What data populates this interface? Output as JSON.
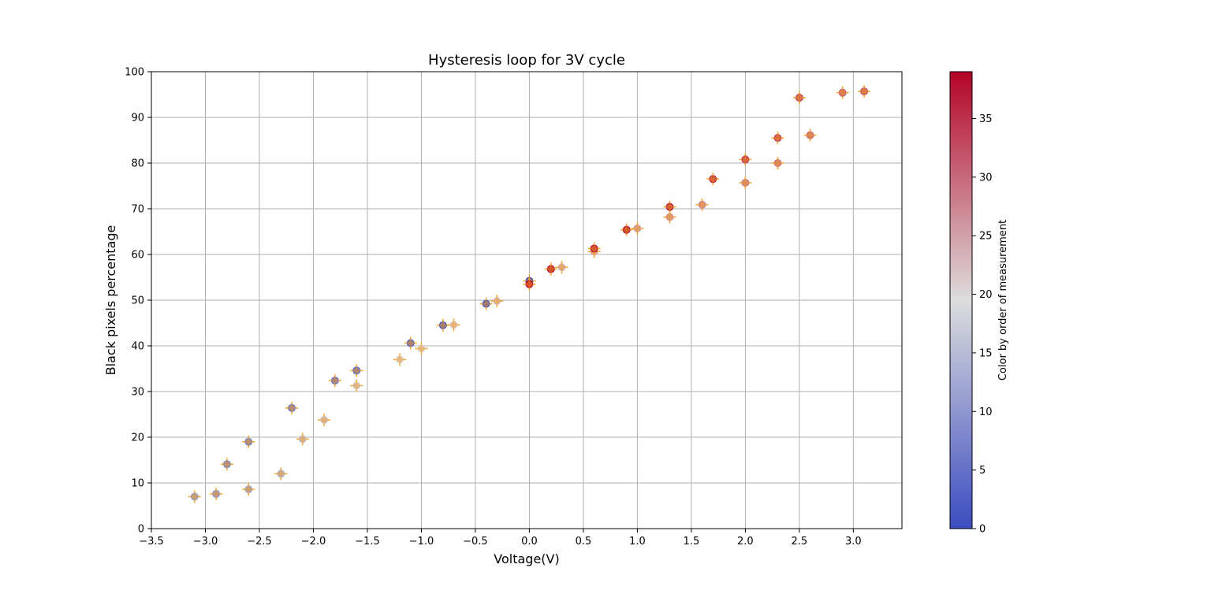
{
  "chart_data": {
    "type": "scatter",
    "title": "Hysteresis loop for 3V cycle",
    "xlabel": "Voltage(V)",
    "ylabel": "Black pixels percentage",
    "xlim": [
      -3.5,
      3.45
    ],
    "ylim": [
      0,
      100
    ],
    "xticks": [
      "−3.5",
      "−3.0",
      "−2.5",
      "−2.0",
      "−1.5",
      "−1.0",
      "−0.5",
      "0.0",
      "0.5",
      "1.0",
      "1.5",
      "2.0",
      "2.5",
      "3.0"
    ],
    "xtick_values": [
      -3.5,
      -3.0,
      -2.5,
      -2.0,
      -1.5,
      -1.0,
      -0.5,
      0.0,
      0.5,
      1.0,
      1.5,
      2.0,
      2.5,
      3.0
    ],
    "yticks": [
      "0",
      "10",
      "20",
      "30",
      "40",
      "50",
      "60",
      "70",
      "80",
      "90",
      "100"
    ],
    "ytick_values": [
      0,
      10,
      20,
      30,
      40,
      50,
      60,
      70,
      80,
      90,
      100
    ],
    "grid": true,
    "colorbar": {
      "label": "Color by order of measurement",
      "ticks": [
        "0",
        "5",
        "10",
        "15",
        "20",
        "25",
        "30",
        "35"
      ],
      "tick_values": [
        0,
        5,
        10,
        15,
        20,
        25,
        30,
        35
      ],
      "range": [
        0,
        39
      ],
      "colormap": "coolwarm",
      "colors": [
        "#3b4cc0",
        "#dddddd",
        "#b40426"
      ]
    },
    "errorbar_color": "#f5a623",
    "marker_color": "#f39c2a",
    "points": [
      {
        "x": 0.0,
        "y": 54.2,
        "order": 0
      },
      {
        "x": -0.4,
        "y": 49.2,
        "order": 1
      },
      {
        "x": -0.8,
        "y": 44.5,
        "order": 2
      },
      {
        "x": -1.1,
        "y": 40.6,
        "order": 3
      },
      {
        "x": -1.6,
        "y": 34.6,
        "order": 4
      },
      {
        "x": -1.8,
        "y": 32.4,
        "order": 5
      },
      {
        "x": -2.2,
        "y": 26.4,
        "order": 6
      },
      {
        "x": -2.6,
        "y": 19.0,
        "order": 7
      },
      {
        "x": -2.8,
        "y": 14.1,
        "order": 8
      },
      {
        "x": -2.9,
        "y": 7.6,
        "order": 10
      },
      {
        "x": -3.1,
        "y": 7.0,
        "order": 11
      },
      {
        "x": -2.6,
        "y": 8.6,
        "order": 12
      },
      {
        "x": -2.3,
        "y": 12.0,
        "order": 14
      },
      {
        "x": -2.1,
        "y": 19.6,
        "order": 16
      },
      {
        "x": -1.9,
        "y": 23.8,
        "order": 17
      },
      {
        "x": -1.6,
        "y": 31.3,
        "order": 18
      },
      {
        "x": -1.2,
        "y": 37.0,
        "order": 19
      },
      {
        "x": -1.0,
        "y": 39.4,
        "order": 20
      },
      {
        "x": -0.7,
        "y": 44.6,
        "order": 21
      },
      {
        "x": -0.3,
        "y": 49.8,
        "order": 22
      },
      {
        "x": 0.0,
        "y": 53.5,
        "order": 39
      },
      {
        "x": 0.3,
        "y": 57.2,
        "order": 23
      },
      {
        "x": 0.6,
        "y": 60.6,
        "order": 24
      },
      {
        "x": 1.0,
        "y": 65.7,
        "order": 25
      },
      {
        "x": 1.3,
        "y": 68.2,
        "order": 26
      },
      {
        "x": 1.6,
        "y": 70.9,
        "order": 27
      },
      {
        "x": 2.0,
        "y": 75.7,
        "order": 28
      },
      {
        "x": 2.3,
        "y": 80.0,
        "order": 29
      },
      {
        "x": 2.6,
        "y": 86.1,
        "order": 30
      },
      {
        "x": 2.9,
        "y": 95.4,
        "order": 31
      },
      {
        "x": 3.1,
        "y": 95.7,
        "order": 32
      },
      {
        "x": 2.5,
        "y": 94.3,
        "order": 33
      },
      {
        "x": 2.3,
        "y": 85.5,
        "order": 34
      },
      {
        "x": 2.0,
        "y": 80.8,
        "order": 35
      },
      {
        "x": 1.7,
        "y": 76.5,
        "order": 36
      },
      {
        "x": 1.3,
        "y": 70.4,
        "order": 37
      },
      {
        "x": 0.9,
        "y": 65.4,
        "order": 38
      },
      {
        "x": 0.6,
        "y": 61.3,
        "order": 38
      },
      {
        "x": 0.2,
        "y": 56.8,
        "order": 39
      }
    ]
  }
}
